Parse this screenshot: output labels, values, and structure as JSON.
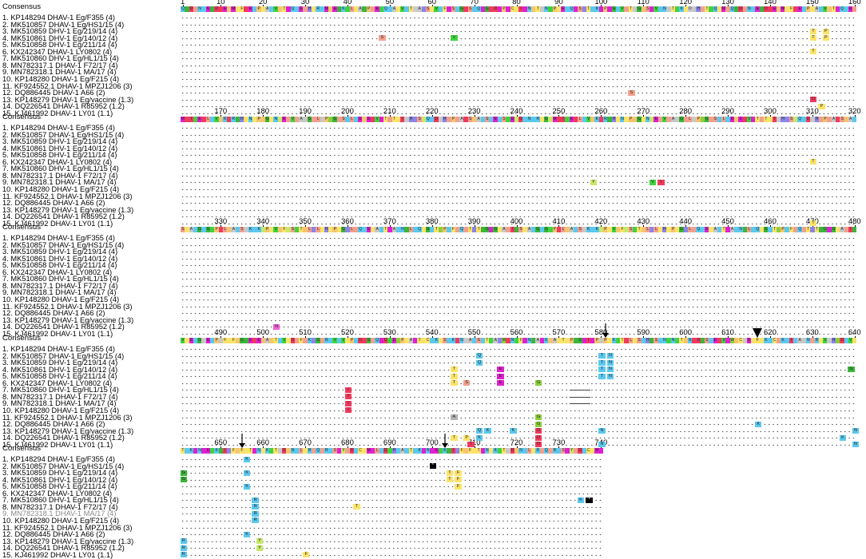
{
  "panels": [
    {
      "key": "p1",
      "ticks": [
        1,
        10,
        20,
        30,
        40,
        50,
        60,
        70,
        80,
        90,
        100,
        110,
        120,
        130,
        140,
        150,
        160
      ],
      "consensus": "QGDSNQEGDDEPMCFIENPTANVPTEQQESHTRKMPEGKVLTAGPSEVQNATVKTOAHSTVQFMS"
    },
    {
      "key": "p2",
      "ticks": [
        170,
        180,
        190,
        200,
        210,
        220,
        230,
        240,
        250,
        260,
        270,
        280,
        290,
        300,
        310,
        320
      ],
      "consensus": "MDIVEDLQVPKDRGHTNTPPGTNYELVSAAGSLAPWGSSNLKEPEIVETLTFIAHHSYQNDAHLPSADSPAKSNERSVEYDRNRRFGY"
    },
    {
      "key": "p3",
      "ticks": [
        330,
        340,
        350,
        360,
        370,
        380,
        390,
        400,
        410,
        420,
        430,
        440,
        450,
        460,
        470,
        480
      ],
      "consensus": "STANGQGVPILPANSAKNKYPTVPFYSVTPLHLTHFPTGHLLQKEFAQTMAQNGLKQFGRTWPNFSQSTHTGGEGTASIG"
    },
    {
      "key": "p4",
      "ticks": [
        490,
        500,
        510,
        520,
        530,
        540,
        550,
        560,
        570,
        580,
        590,
        600,
        610,
        620,
        630,
        640
      ],
      "consensus": "VFENGAEKPAFTFPGGEIEPAPTKVTDLFSKHGSRNVNVTPNDDGSQEDVEWPCAETFCKKCSKKINAANSRTVAHWDN"
    },
    {
      "key": "p5",
      "ticks": [
        650,
        660,
        670,
        680,
        690,
        700,
        710,
        720,
        730,
        740
      ],
      "consensus": "TNKMNEEVKGIHFPFCTENTKVTADPNRLTRLQSRKSEYSDQCTMELNDVHKAN"
    }
  ],
  "panel_labels": {
    "consensus": "Consensus",
    "rows": [
      "1. KP148294 DHAV-1 Eg/F355 (4)",
      "2. MK510857 DHAV-1 Eg/HS1/15 (4)",
      "3. MK510859 DHV-1 Eg/219/14 (4)",
      "4. MK510861 DHV-1 Eg/140/12 (4)",
      "5. MK510858 DHV-1 Eg/211/14 (4)",
      "6. KX242347 DHAV-1 LY0802 (4)",
      "7. MK510860 DHV-1 Eg/HL1/15 (4)",
      "8. MN782317.1 DHAV-1 F72/17 (4)",
      "9. MN782318.1 DHAV-1 MA/17 (4)",
      "10. KP148280 DHAV-1 Eg/F215 (4)",
      "11. KF924552.1 DHAV-1 MPZJ1206 (3)",
      "12. DQ886445 DHAV-1 A66 (2)",
      "13. KP148279 DHAV-1 Eg/vaccine (1.3)",
      "14. DQ226541 DHAV-1 R85952 (1.2)",
      "15. KJ461992 DHAV-1 LY01 (1.1)"
    ]
  },
  "mutations": [
    {
      "panel": "p1",
      "row": 4,
      "pos": 48,
      "aa": "S",
      "color": "#f2a08e"
    },
    {
      "panel": "p1",
      "row": 4,
      "pos": 65,
      "aa": "V",
      "color": "#3fd33f"
    },
    {
      "panel": "p1",
      "row": 3,
      "pos": 150,
      "aa": "T",
      "color": "#fbe36a"
    },
    {
      "panel": "p1",
      "row": 3,
      "pos": 153,
      "aa": "P",
      "color": "#fbe36a"
    },
    {
      "panel": "p1",
      "row": 4,
      "pos": 150,
      "aa": "T",
      "color": "#fbe36a"
    },
    {
      "panel": "p1",
      "row": 4,
      "pos": 153,
      "aa": "P",
      "color": "#fbe36a"
    },
    {
      "panel": "p1",
      "row": 6,
      "pos": 150,
      "aa": "T",
      "color": "#fbe36a"
    },
    {
      "panel": "p1",
      "row": 12,
      "pos": 107,
      "aa": "S",
      "color": "#f2a08e"
    },
    {
      "panel": "p1",
      "row": 13,
      "pos": 150,
      "aa": "D",
      "color": "#ef3b5e"
    },
    {
      "panel": "p1",
      "row": 14,
      "pos": 152,
      "aa": "P",
      "color": "#fbe36a"
    },
    {
      "panel": "p2",
      "row": 6,
      "pos": 310,
      "aa": "T",
      "color": "#fbe36a"
    },
    {
      "panel": "p2",
      "row": 9,
      "pos": 258,
      "aa": "Y",
      "color": "#c7e86a"
    },
    {
      "panel": "p2",
      "row": 9,
      "pos": 272,
      "aa": "V",
      "color": "#3fd33f"
    },
    {
      "panel": "p2",
      "row": 9,
      "pos": 274,
      "aa": "I",
      "color": "#ef3b5e"
    },
    {
      "panel": "p2",
      "row": 15,
      "pos": 310,
      "aa": "T",
      "color": "#fbe36a"
    },
    {
      "panel": "p3",
      "row": 14,
      "pos": 343,
      "aa": "N",
      "color": "#f25fd8"
    },
    {
      "panel": "p4",
      "row": 2,
      "pos": 551,
      "aa": "Q",
      "color": "#5cc8ee"
    },
    {
      "panel": "p4",
      "row": 2,
      "pos": 580,
      "aa": "T",
      "color": "#5cc8ee"
    },
    {
      "panel": "p4",
      "row": 2,
      "pos": 582,
      "aa": "N",
      "color": "#5cc8ee"
    },
    {
      "panel": "p4",
      "row": 3,
      "pos": 551,
      "aa": "Q",
      "color": "#5cc8ee"
    },
    {
      "panel": "p4",
      "row": 3,
      "pos": 580,
      "aa": "T",
      "color": "#5cc8ee"
    },
    {
      "panel": "p4",
      "row": 3,
      "pos": 582,
      "aa": "N",
      "color": "#5cc8ee"
    },
    {
      "panel": "p4",
      "row": 4,
      "pos": 545,
      "aa": "T",
      "color": "#fbe36a"
    },
    {
      "panel": "p4",
      "row": 4,
      "pos": 556,
      "aa": "E",
      "color": "#e020d0"
    },
    {
      "panel": "p4",
      "row": 4,
      "pos": 580,
      "aa": "T",
      "color": "#5cc8ee"
    },
    {
      "panel": "p4",
      "row": 4,
      "pos": 582,
      "aa": "N",
      "color": "#5cc8ee"
    },
    {
      "panel": "p4",
      "row": 4,
      "pos": 639,
      "aa": "G",
      "color": "#3bb53b"
    },
    {
      "panel": "p4",
      "row": 5,
      "pos": 545,
      "aa": "T",
      "color": "#fbe36a"
    },
    {
      "panel": "p4",
      "row": 5,
      "pos": 556,
      "aa": "E",
      "color": "#e020d0"
    },
    {
      "panel": "p4",
      "row": 5,
      "pos": 580,
      "aa": "T",
      "color": "#5cc8ee"
    },
    {
      "panel": "p4",
      "row": 5,
      "pos": 582,
      "aa": "N",
      "color": "#5cc8ee"
    },
    {
      "panel": "p4",
      "row": 6,
      "pos": 545,
      "aa": "T",
      "color": "#fbe36a"
    },
    {
      "panel": "p4",
      "row": 6,
      "pos": 548,
      "aa": "S",
      "color": "#f2a08e"
    },
    {
      "panel": "p4",
      "row": 6,
      "pos": 556,
      "aa": "E",
      "color": "#e020d0"
    },
    {
      "panel": "p4",
      "row": 6,
      "pos": 565,
      "aa": "G",
      "color": "#8bcf3b"
    },
    {
      "panel": "p4",
      "row": 7,
      "pos": 520,
      "aa": "I",
      "color": "#ef3b5e"
    },
    {
      "panel": "p4",
      "row": 8,
      "pos": 520,
      "aa": "I",
      "color": "#ef3b5e"
    },
    {
      "panel": "p4",
      "row": 9,
      "pos": 520,
      "aa": "I",
      "color": "#ef3b5e"
    },
    {
      "panel": "p4",
      "row": 10,
      "pos": 520,
      "aa": "I",
      "color": "#ef3b5e"
    },
    {
      "panel": "p4",
      "row": 11,
      "pos": 545,
      "aa": "A",
      "color": "#b3b3b3"
    },
    {
      "panel": "p4",
      "row": 11,
      "pos": 565,
      "aa": "G",
      "color": "#8bcf3b"
    },
    {
      "panel": "p4",
      "row": 12,
      "pos": 565,
      "aa": "G",
      "color": "#8bcf3b"
    },
    {
      "panel": "p4",
      "row": 12,
      "pos": 617,
      "aa": "K",
      "color": "#5cc8ee"
    },
    {
      "panel": "p4",
      "row": 13,
      "pos": 551,
      "aa": "Q",
      "color": "#5cc8ee"
    },
    {
      "panel": "p4",
      "row": 13,
      "pos": 553,
      "aa": "K",
      "color": "#5cc8ee"
    },
    {
      "panel": "p4",
      "row": 13,
      "pos": 559,
      "aa": "K",
      "color": "#5cc8ee"
    },
    {
      "panel": "p4",
      "row": 13,
      "pos": 565,
      "aa": "D",
      "color": "#ef3b5e"
    },
    {
      "panel": "p4",
      "row": 13,
      "pos": 580,
      "aa": "N",
      "color": "#5cc8ee"
    },
    {
      "panel": "p4",
      "row": 13,
      "pos": 640,
      "aa": "N",
      "color": "#5cc8ee"
    },
    {
      "panel": "p4",
      "row": 14,
      "pos": 545,
      "aa": "T",
      "color": "#fbe36a"
    },
    {
      "panel": "p4",
      "row": 14,
      "pos": 548,
      "aa": "P",
      "color": "#fbe36a"
    },
    {
      "panel": "p4",
      "row": 14,
      "pos": 551,
      "aa": "K",
      "color": "#5cc8ee"
    },
    {
      "panel": "p4",
      "row": 14,
      "pos": 565,
      "aa": "D",
      "color": "#ef3b5e"
    },
    {
      "panel": "p4",
      "row": 14,
      "pos": 637,
      "aa": "K",
      "color": "#5cc8ee"
    },
    {
      "panel": "p4",
      "row": 15,
      "pos": 549,
      "aa": "I",
      "color": "#ef3b5e"
    },
    {
      "panel": "p4",
      "row": 15,
      "pos": 565,
      "aa": "D",
      "color": "#ef3b5e"
    },
    {
      "panel": "p4",
      "row": 15,
      "pos": 580,
      "aa": "N",
      "color": "#5cc8ee"
    },
    {
      "panel": "p4",
      "row": 15,
      "pos": 640,
      "aa": "N",
      "color": "#5cc8ee"
    },
    {
      "panel": "p5",
      "row": 1,
      "pos": 656,
      "aa": "K",
      "color": "#5cc8ee"
    },
    {
      "panel": "p5",
      "row": 2,
      "pos": 700,
      "aa": "*",
      "color": "#000000"
    },
    {
      "panel": "p5",
      "row": 3,
      "pos": 641,
      "aa": "G",
      "color": "#3bb53b"
    },
    {
      "panel": "p5",
      "row": 3,
      "pos": 656,
      "aa": "K",
      "color": "#5cc8ee"
    },
    {
      "panel": "p5",
      "row": 3,
      "pos": 704,
      "aa": "T",
      "color": "#fbe36a"
    },
    {
      "panel": "p5",
      "row": 3,
      "pos": 706,
      "aa": "F",
      "color": "#fbe36a"
    },
    {
      "panel": "p5",
      "row": 4,
      "pos": 641,
      "aa": "G",
      "color": "#3bb53b"
    },
    {
      "panel": "p5",
      "row": 4,
      "pos": 704,
      "aa": "T",
      "color": "#fbe36a"
    },
    {
      "panel": "p5",
      "row": 4,
      "pos": 706,
      "aa": "F",
      "color": "#fbe36a"
    },
    {
      "panel": "p5",
      "row": 5,
      "pos": 656,
      "aa": "K",
      "color": "#5cc8ee"
    },
    {
      "panel": "p5",
      "row": 5,
      "pos": 706,
      "aa": "F",
      "color": "#fbe36a"
    },
    {
      "panel": "p5",
      "row": 7,
      "pos": 658,
      "aa": "R",
      "color": "#5cc8ee"
    },
    {
      "panel": "p5",
      "row": 7,
      "pos": 735,
      "aa": "K",
      "color": "#5cc8ee"
    },
    {
      "panel": "p5",
      "row": 7,
      "pos": 737,
      "aa": "*",
      "color": "#000000"
    },
    {
      "panel": "p5",
      "row": 8,
      "pos": 658,
      "aa": "R",
      "color": "#5cc8ee"
    },
    {
      "panel": "p5",
      "row": 8,
      "pos": 682,
      "aa": "T",
      "color": "#fbe36a"
    },
    {
      "panel": "p5",
      "row": 9,
      "pos": 658,
      "aa": "R",
      "color": "#5cc8ee"
    },
    {
      "panel": "p5",
      "row": 10,
      "pos": 658,
      "aa": "R",
      "color": "#5cc8ee"
    },
    {
      "panel": "p5",
      "row": 12,
      "pos": 656,
      "aa": "K",
      "color": "#5cc8ee"
    },
    {
      "panel": "p5",
      "row": 13,
      "pos": 641,
      "aa": "R",
      "color": "#5cc8ee"
    },
    {
      "panel": "p5",
      "row": 13,
      "pos": 659,
      "aa": "Y",
      "color": "#c7e86a"
    },
    {
      "panel": "p5",
      "row": 14,
      "pos": 641,
      "aa": "R",
      "color": "#5cc8ee"
    },
    {
      "panel": "p5",
      "row": 14,
      "pos": 659,
      "aa": "Y",
      "color": "#c7e86a"
    },
    {
      "panel": "p5",
      "row": 15,
      "pos": 641,
      "aa": "R",
      "color": "#5cc8ee"
    },
    {
      "panel": "p5",
      "row": 15,
      "pos": 670,
      "aa": "F",
      "color": "#fbe36a"
    }
  ],
  "gaps": [
    {
      "panel": "p4",
      "row": 7,
      "from": 573,
      "to": 577
    },
    {
      "panel": "p4",
      "row": 8,
      "from": 573,
      "to": 577
    },
    {
      "panel": "p4",
      "row": 9,
      "from": 573,
      "to": 577
    }
  ],
  "arrows": [
    {
      "panel": "p4",
      "pos": 581,
      "style": "thin"
    },
    {
      "panel": "p4",
      "pos": 617,
      "style": "bold"
    },
    {
      "panel": "p5",
      "pos": 655,
      "style": "thin"
    },
    {
      "panel": "p5",
      "pos": 703,
      "style": "thin"
    }
  ],
  "greyed_rows": [
    {
      "panel": "p5",
      "row": 9
    }
  ],
  "aa_colors": {
    "A": "#c8c8c8",
    "R": "#5cc8ee",
    "N": "#5cc8ee",
    "D": "#ef3b5e",
    "C": "#fbe36a",
    "Q": "#5cc8ee",
    "E": "#e020d0",
    "G": "#3bb53b",
    "H": "#8b85e8",
    "I": "#ef3b5e",
    "L": "#f2a08e",
    "K": "#5cc8ee",
    "M": "#e020d0",
    "F": "#fbe36a",
    "P": "#f6c470",
    "S": "#f2a08e",
    "T": "#fbe36a",
    "W": "#8bcf3b",
    "Y": "#c7e86a",
    "V": "#3fd33f"
  }
}
